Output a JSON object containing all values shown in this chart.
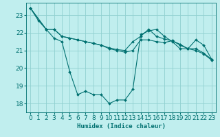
{
  "xlabel": "Humidex (Indice chaleur)",
  "bg_color": "#c0eeee",
  "grid_color": "#90d0d0",
  "line_color": "#007070",
  "xlim": [
    -0.5,
    23.5
  ],
  "ylim": [
    17.5,
    23.7
  ],
  "yticks": [
    18,
    19,
    20,
    21,
    22,
    23
  ],
  "xticks": [
    0,
    1,
    2,
    3,
    4,
    5,
    6,
    7,
    8,
    9,
    10,
    11,
    12,
    13,
    14,
    15,
    16,
    17,
    18,
    19,
    20,
    21,
    22,
    23
  ],
  "line1_x": [
    0,
    1,
    2,
    3,
    4,
    5,
    6,
    7,
    8,
    9,
    10,
    11,
    12,
    13,
    14,
    15,
    16,
    17,
    18,
    19,
    20,
    21,
    22,
    23
  ],
  "line1_y": [
    23.4,
    22.7,
    22.2,
    21.7,
    21.5,
    19.8,
    18.5,
    18.7,
    18.5,
    18.5,
    18.0,
    18.2,
    18.2,
    18.8,
    21.9,
    22.1,
    22.2,
    21.8,
    21.5,
    21.1,
    21.1,
    21.6,
    21.3,
    20.5
  ],
  "line2_x": [
    0,
    2,
    3,
    4,
    5,
    6,
    7,
    8,
    9,
    10,
    11,
    12,
    13,
    14,
    15,
    16,
    17,
    18,
    19,
    20,
    21,
    22,
    23
  ],
  "line2_y": [
    23.4,
    22.2,
    22.2,
    21.8,
    21.7,
    21.6,
    21.5,
    21.4,
    21.3,
    21.15,
    21.05,
    21.0,
    21.5,
    21.8,
    22.2,
    21.8,
    21.65,
    21.55,
    21.35,
    21.1,
    21.1,
    20.85,
    20.5
  ],
  "line3_x": [
    0,
    2,
    3,
    4,
    5,
    6,
    7,
    8,
    9,
    10,
    11,
    12,
    13,
    14,
    15,
    16,
    17,
    18,
    19,
    20,
    21,
    22,
    23
  ],
  "line3_y": [
    23.4,
    22.2,
    22.2,
    21.8,
    21.7,
    21.6,
    21.5,
    21.4,
    21.3,
    21.1,
    21.0,
    20.9,
    21.0,
    21.6,
    21.6,
    21.5,
    21.45,
    21.55,
    21.3,
    21.1,
    21.0,
    20.8,
    20.45
  ],
  "markersize": 2.0,
  "linewidth": 0.8,
  "font_size": 6.5
}
